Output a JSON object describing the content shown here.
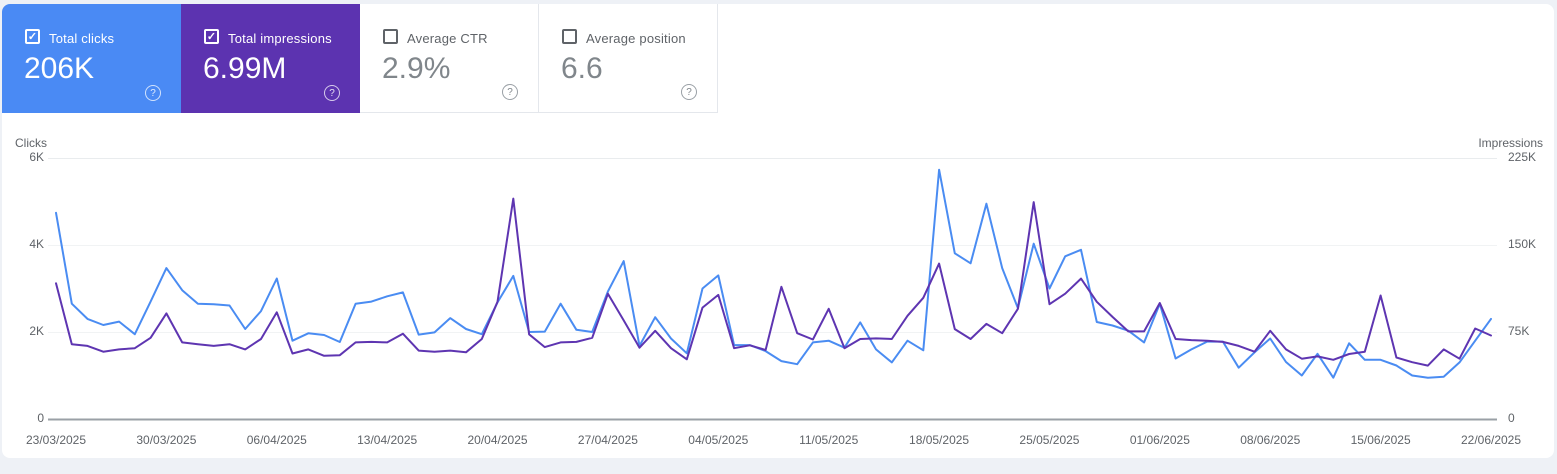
{
  "metric_cards": [
    {
      "id": "total-clicks",
      "label": "Total clicks",
      "value": "206K",
      "checked": true,
      "bg": "#4a8af4"
    },
    {
      "id": "total-impressions",
      "label": "Total impressions",
      "value": "6.99M",
      "checked": true,
      "bg": "#5c33b0"
    },
    {
      "id": "average-ctr",
      "label": "Average CTR",
      "value": "2.9%",
      "checked": false,
      "bg": "#ffffff"
    },
    {
      "id": "average-position",
      "label": "Average position",
      "value": "6.6",
      "checked": false,
      "bg": "#ffffff"
    }
  ],
  "chart_data": {
    "type": "line",
    "grid": "horizontal",
    "legend_position": "none",
    "x_axis": {
      "tick_labels": [
        "23/03/2025",
        "30/03/2025",
        "06/04/2025",
        "13/04/2025",
        "20/04/2025",
        "27/04/2025",
        "04/05/2025",
        "11/05/2025",
        "18/05/2025",
        "25/05/2025",
        "01/06/2025",
        "08/06/2025",
        "15/06/2025",
        "22/06/2025"
      ],
      "points_per_tick": 7,
      "num_points": 92
    },
    "left_axis": {
      "title": "Clicks",
      "tick_labels": [
        "0",
        "2K",
        "4K",
        "6K"
      ],
      "tick_values": [
        0,
        2000,
        4000,
        6000
      ],
      "range": [
        0,
        6000
      ]
    },
    "right_axis": {
      "title": "Impressions",
      "tick_labels": [
        "0",
        "75K",
        "150K",
        "225K"
      ],
      "tick_values": [
        0,
        75000,
        150000,
        225000
      ],
      "range": [
        0,
        225000
      ]
    },
    "series": [
      {
        "name": "Total clicks",
        "axis": "left",
        "color": "#4a8cf2",
        "values": [
          4740,
          2650,
          2300,
          2160,
          2240,
          1950,
          2700,
          3470,
          2960,
          2650,
          2640,
          2610,
          2070,
          2480,
          3230,
          1800,
          1970,
          1930,
          1770,
          2650,
          2700,
          2820,
          2910,
          1940,
          1990,
          2320,
          2070,
          1950,
          2680,
          3290,
          2000,
          2010,
          2650,
          2050,
          2000,
          2930,
          3630,
          1680,
          2340,
          1850,
          1510,
          3000,
          3300,
          1700,
          1700,
          1560,
          1330,
          1260,
          1760,
          1800,
          1640,
          2220,
          1600,
          1300,
          1800,
          1580,
          5730,
          3810,
          3580,
          4950,
          3470,
          2550,
          4030,
          3000,
          3740,
          3890,
          2230,
          2150,
          2030,
          1760,
          2650,
          1390,
          1600,
          1780,
          1780,
          1180,
          1530,
          1850,
          1310,
          1000,
          1500,
          950,
          1740,
          1360,
          1360,
          1230,
          1000,
          950,
          970,
          1300,
          1800,
          2300
        ]
      },
      {
        "name": "Total impressions",
        "axis": "right",
        "color": "#5e35b1",
        "values": [
          117000,
          64500,
          63000,
          58000,
          60000,
          61000,
          70000,
          91000,
          66000,
          64500,
          63000,
          64500,
          60000,
          69000,
          92000,
          56500,
          60000,
          54500,
          55000,
          66000,
          66500,
          66000,
          73500,
          59000,
          58000,
          59000,
          57500,
          69000,
          101000,
          190000,
          73000,
          62000,
          66000,
          66500,
          70000,
          108000,
          85000,
          61500,
          76000,
          61000,
          51500,
          96000,
          107000,
          61000,
          63500,
          59500,
          114000,
          74000,
          68500,
          95000,
          61000,
          69000,
          69500,
          69000,
          89000,
          104500,
          134000,
          77500,
          69000,
          82000,
          74000,
          95000,
          187000,
          99000,
          108000,
          121000,
          101000,
          88000,
          75500,
          75500,
          100000,
          69000,
          68000,
          67500,
          66500,
          63000,
          58000,
          76000,
          60000,
          52000,
          54000,
          51000,
          56000,
          58000,
          106500,
          53000,
          49000,
          46000,
          60000,
          52000,
          78000,
          72000
        ]
      }
    ],
    "zero_labels": {
      "left": "0",
      "right": "0"
    }
  },
  "icons": {
    "checkmark": "✓",
    "help": "?"
  }
}
